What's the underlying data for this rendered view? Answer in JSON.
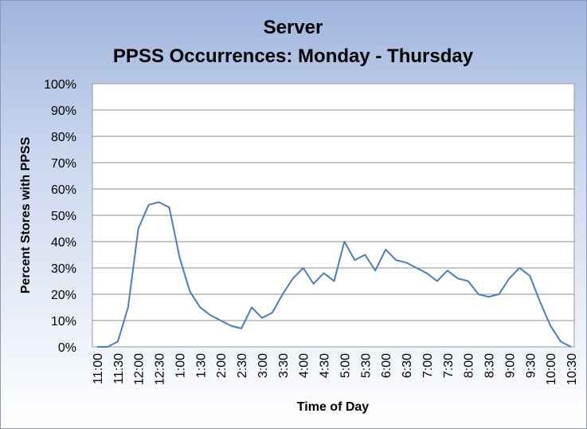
{
  "chart_data": {
    "type": "line",
    "title": "Server",
    "subtitle": "PPSS Occurrences: Monday - Thursday",
    "xlabel": "Time of Day",
    "ylabel": "Percent Stores with PPSS",
    "ylim": [
      0,
      100
    ],
    "y_ticks": [
      "0%",
      "10%",
      "20%",
      "30%",
      "40%",
      "50%",
      "60%",
      "70%",
      "80%",
      "90%",
      "100%"
    ],
    "x_tick_labels": [
      "11:00",
      "11:30",
      "12:00",
      "12:30",
      "1:00",
      "1:30",
      "2:00",
      "2:30",
      "3:00",
      "3:30",
      "4:00",
      "4:30",
      "5:00",
      "5:30",
      "6:00",
      "6:30",
      "7:00",
      "7:30",
      "8:00",
      "8:30",
      "9:00",
      "9:30",
      "10:00",
      "10:30"
    ],
    "grid": "horizontal",
    "series_color": "#4a7ebb",
    "series": [
      {
        "values": [
          0,
          0,
          2,
          15,
          45,
          54,
          55,
          53,
          34,
          21,
          15,
          12,
          10,
          8,
          7,
          15,
          11,
          13,
          20,
          26,
          30,
          24,
          28,
          25,
          40,
          33,
          35,
          29,
          37,
          33,
          32,
          30,
          28,
          25,
          29,
          26,
          25,
          20,
          19,
          20,
          26,
          30,
          27,
          17,
          8,
          2,
          0
        ]
      }
    ]
  }
}
